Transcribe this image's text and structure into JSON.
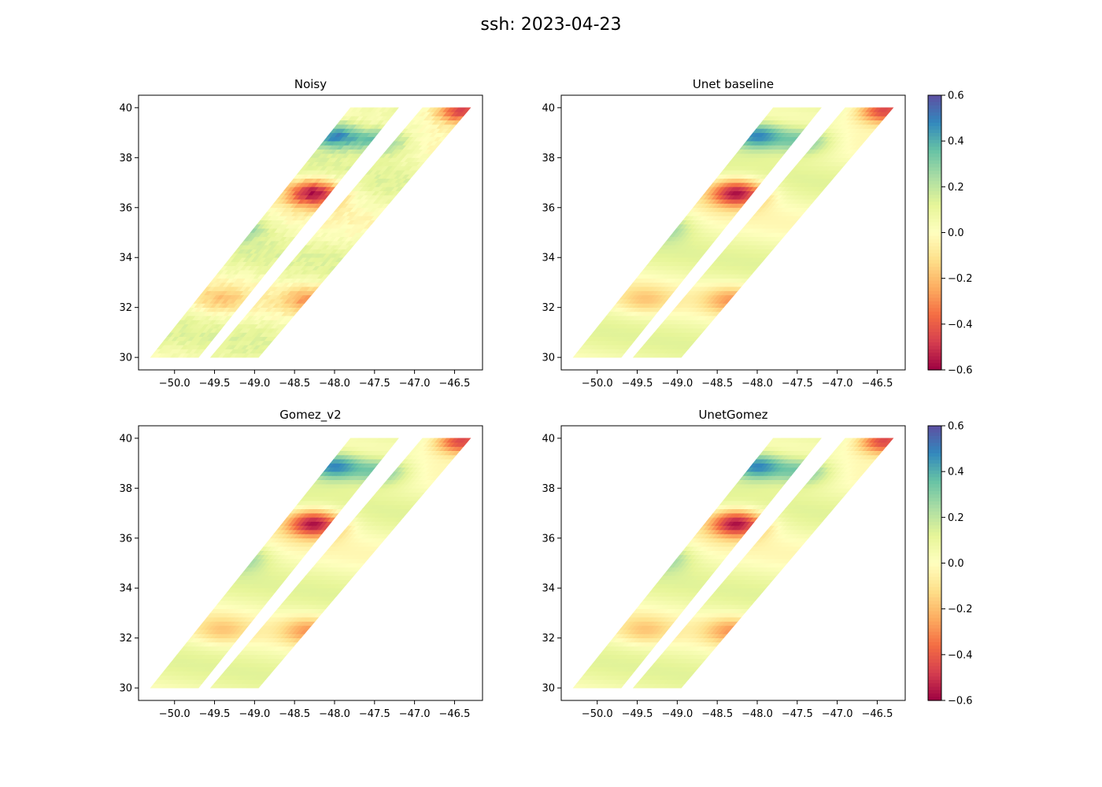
{
  "figure": {
    "title": "ssh: 2023-04-23"
  },
  "chart_data": [
    {
      "type": "heatmap",
      "title": "Noisy",
      "xlim": [
        -50.45,
        -46.15
      ],
      "ylim": [
        29.5,
        40.5
      ],
      "xticks": [
        -50.0,
        -49.5,
        -49.0,
        -48.5,
        -48.0,
        -47.5,
        -47.0,
        -46.5
      ],
      "yticks": [
        30,
        32,
        34,
        36,
        38,
        40
      ],
      "xtick_labels": [
        "−50.0",
        "−49.5",
        "−49.0",
        "−48.5",
        "−48.0",
        "−47.5",
        "−47.0",
        "−46.5"
      ],
      "ytick_labels": [
        "30",
        "32",
        "34",
        "36",
        "38",
        "40"
      ],
      "colormap": "Spectral",
      "vmin": -0.6,
      "vmax": 0.6,
      "swaths": [
        {
          "name": "left swath",
          "lon_at_lat30": [
            -50.3,
            -49.7
          ],
          "lon_at_lat40": [
            -47.8,
            -47.2
          ],
          "lat_range": [
            30,
            40
          ]
        },
        {
          "name": "right swath",
          "lon_at_lat30": [
            -49.55,
            -48.95
          ],
          "lon_at_lat40": [
            -46.9,
            -46.3
          ],
          "lat_range": [
            30,
            40
          ]
        }
      ],
      "features": [
        {
          "feature": "negative eddy",
          "lon": -48.25,
          "lat": 36.6,
          "value": -0.6
        },
        {
          "feature": "positive anomaly",
          "lon": -48.0,
          "lat": 38.9,
          "value": 0.5
        },
        {
          "feature": "positive anomaly",
          "lon": -47.4,
          "lat": 38.7,
          "value": 0.35
        },
        {
          "feature": "negative anomaly",
          "lon": -48.3,
          "lat": 32.3,
          "value": -0.25
        },
        {
          "feature": "negative anomaly",
          "lon": -49.4,
          "lat": 32.3,
          "value": -0.15
        },
        {
          "feature": "positive anomaly",
          "lon": -49.2,
          "lat": 35.3,
          "value": 0.3
        },
        {
          "feature": "negative anomaly",
          "lon": -46.4,
          "lat": 39.9,
          "value": -0.55
        }
      ],
      "noisy": true
    },
    {
      "type": "heatmap",
      "title": "Unet baseline",
      "xlim": [
        -50.45,
        -46.15
      ],
      "ylim": [
        29.5,
        40.5
      ],
      "xticks": [
        -50.0,
        -49.5,
        -49.0,
        -48.5,
        -48.0,
        -47.5,
        -47.0,
        -46.5
      ],
      "yticks": [
        30,
        32,
        34,
        36,
        38,
        40
      ],
      "xtick_labels": [
        "−50.0",
        "−49.5",
        "−49.0",
        "−48.5",
        "−48.0",
        "−47.5",
        "−47.0",
        "−46.5"
      ],
      "ytick_labels": [
        "30",
        "32",
        "34",
        "36",
        "38",
        "40"
      ],
      "colormap": "Spectral",
      "vmin": -0.6,
      "vmax": 0.6,
      "colorbar": {
        "ticks": [
          0.6,
          0.4,
          0.2,
          0.0,
          -0.2,
          -0.4,
          -0.6
        ],
        "tick_labels": [
          "0.6",
          "0.4",
          "0.2",
          "0.0",
          "−0.2",
          "−0.4",
          "−0.6"
        ]
      },
      "noisy": false
    },
    {
      "type": "heatmap",
      "title": "Gomez_v2",
      "xlim": [
        -50.45,
        -46.15
      ],
      "ylim": [
        29.5,
        40.5
      ],
      "xticks": [
        -50.0,
        -49.5,
        -49.0,
        -48.5,
        -48.0,
        -47.5,
        -47.0,
        -46.5
      ],
      "yticks": [
        30,
        32,
        34,
        36,
        38,
        40
      ],
      "xtick_labels": [
        "−50.0",
        "−49.5",
        "−49.0",
        "−48.5",
        "−48.0",
        "−47.5",
        "−47.0",
        "−46.5"
      ],
      "ytick_labels": [
        "30",
        "32",
        "34",
        "36",
        "38",
        "40"
      ],
      "colormap": "Spectral",
      "vmin": -0.6,
      "vmax": 0.6,
      "noisy": false
    },
    {
      "type": "heatmap",
      "title": "UnetGomez",
      "xlim": [
        -50.45,
        -46.15
      ],
      "ylim": [
        29.5,
        40.5
      ],
      "xticks": [
        -50.0,
        -49.5,
        -49.0,
        -48.5,
        -48.0,
        -47.5,
        -47.0,
        -46.5
      ],
      "yticks": [
        30,
        32,
        34,
        36,
        38,
        40
      ],
      "xtick_labels": [
        "−50.0",
        "−49.5",
        "−49.0",
        "−48.5",
        "−48.0",
        "−47.5",
        "−47.0",
        "−46.5"
      ],
      "ytick_labels": [
        "30",
        "32",
        "34",
        "36",
        "38",
        "40"
      ],
      "colormap": "Spectral",
      "vmin": -0.6,
      "vmax": 0.6,
      "colorbar": {
        "ticks": [
          0.6,
          0.4,
          0.2,
          0.0,
          -0.2,
          -0.4,
          -0.6
        ],
        "tick_labels": [
          "0.6",
          "0.4",
          "0.2",
          "0.0",
          "−0.2",
          "−0.4",
          "−0.6"
        ]
      },
      "noisy": false
    }
  ]
}
